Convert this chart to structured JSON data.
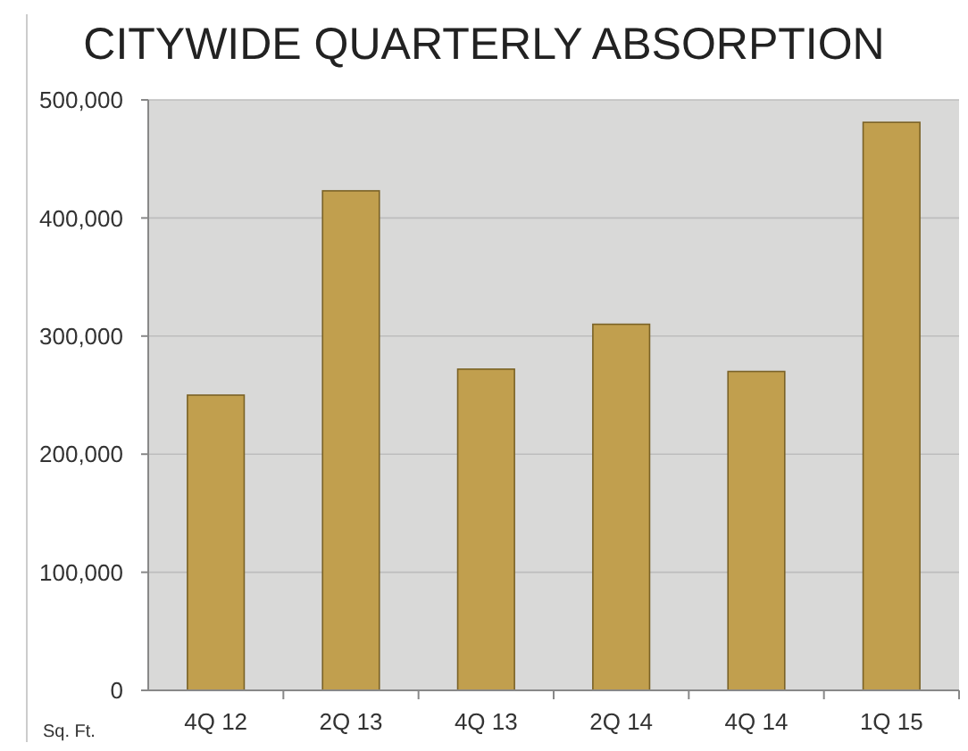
{
  "chart_data": {
    "type": "bar",
    "title": "CITYWIDE QUARTERLY ABSORPTION",
    "ylabel": "Sq. Ft.",
    "categories": [
      "4Q 12",
      "2Q 13",
      "4Q 13",
      "2Q 14",
      "4Q 14",
      "1Q 15"
    ],
    "values": [
      250000,
      423000,
      272000,
      310000,
      270000,
      481000
    ],
    "color": "#c19f4e",
    "ylim": [
      0,
      500000
    ],
    "yticks": [
      {
        "value": 0,
        "label": "0"
      },
      {
        "value": 100000,
        "label": "100,000"
      },
      {
        "value": 200000,
        "label": "200,000"
      },
      {
        "value": 300000,
        "label": "300,000"
      },
      {
        "value": 400000,
        "label": "400,000"
      },
      {
        "value": 500000,
        "label": "500,000"
      }
    ],
    "grid": "y"
  }
}
